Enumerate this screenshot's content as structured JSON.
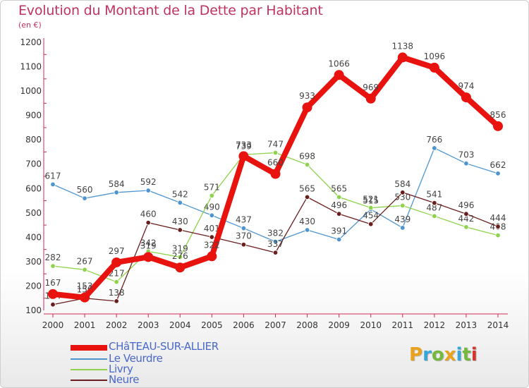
{
  "header": {
    "title": "Evolution du Montant de la Dette par Habitant",
    "unit": "(en €)"
  },
  "brand": {
    "letters": [
      "P",
      "r",
      "o",
      "x",
      "i",
      "t",
      "i"
    ],
    "colors": [
      "#e8a21c",
      "#37a6d9",
      "#74b93d",
      "#e8a21c",
      "#37a6d9",
      "#74b93d",
      "#d6342f"
    ]
  },
  "chart_data": {
    "type": "line",
    "title": "Evolution du Montant de la Dette par Habitant",
    "subtitle": "(en €)",
    "xlabel": "",
    "ylabel": "",
    "x": [
      "2000",
      "2001",
      "2002",
      "2003",
      "2004",
      "2005",
      "2006",
      "2007",
      "2008",
      "2009",
      "2010",
      "2011",
      "2012",
      "2013",
      "2014"
    ],
    "ylim": [
      100,
      1200
    ],
    "yticks": [
      100,
      200,
      300,
      400,
      500,
      600,
      700,
      800,
      900,
      1000,
      1100,
      1200
    ],
    "grid": "none",
    "legend_position": "bottom-left",
    "series": [
      {
        "name": "CHâTEAU-SUR-ALLIER",
        "color": "#e8130f",
        "values": [
          167,
          153,
          297,
          319,
          276,
          322,
          733,
          660,
          933,
          1066,
          969,
          1138,
          1096,
          974,
          856
        ],
        "labels": [
          "167",
          "153",
          "297",
          "319",
          "276",
          "322",
          "733",
          "660",
          "933",
          "1066",
          "969",
          "1138",
          "1096",
          "974",
          "856"
        ]
      },
      {
        "name": "Le Veurdre",
        "color": "#4e95d0",
        "values": [
          617,
          560,
          584,
          592,
          542,
          490,
          437,
          382,
          430,
          391,
          515,
          439,
          766,
          703,
          662
        ],
        "labels": [
          "617",
          "560",
          "584",
          "592",
          "542",
          "490",
          "437",
          "382",
          "430",
          "391",
          "515",
          "439",
          "766",
          "703",
          "662"
        ]
      },
      {
        "name": "Livry",
        "color": "#8fd34c",
        "values": [
          282,
          267,
          217,
          342,
          319,
          571,
          739,
          747,
          698,
          565,
          521,
          530,
          487,
          442,
          408
        ],
        "labels": [
          "282",
          "267",
          "217",
          "342",
          "319",
          "571",
          "739",
          "747",
          "698",
          "565",
          "521",
          "530",
          "487",
          "442",
          "408"
        ]
      },
      {
        "name": "Neure",
        "color": "#6b1e1e",
        "values": [
          124,
          150,
          138,
          460,
          430,
          401,
          370,
          337,
          565,
          496,
          454,
          584,
          541,
          496,
          444
        ],
        "labels": [
          "124",
          "150",
          "138",
          "460",
          "430",
          "401",
          "370",
          "337",
          "565",
          "496",
          "454",
          "584",
          "541",
          "496",
          "444"
        ]
      }
    ]
  }
}
